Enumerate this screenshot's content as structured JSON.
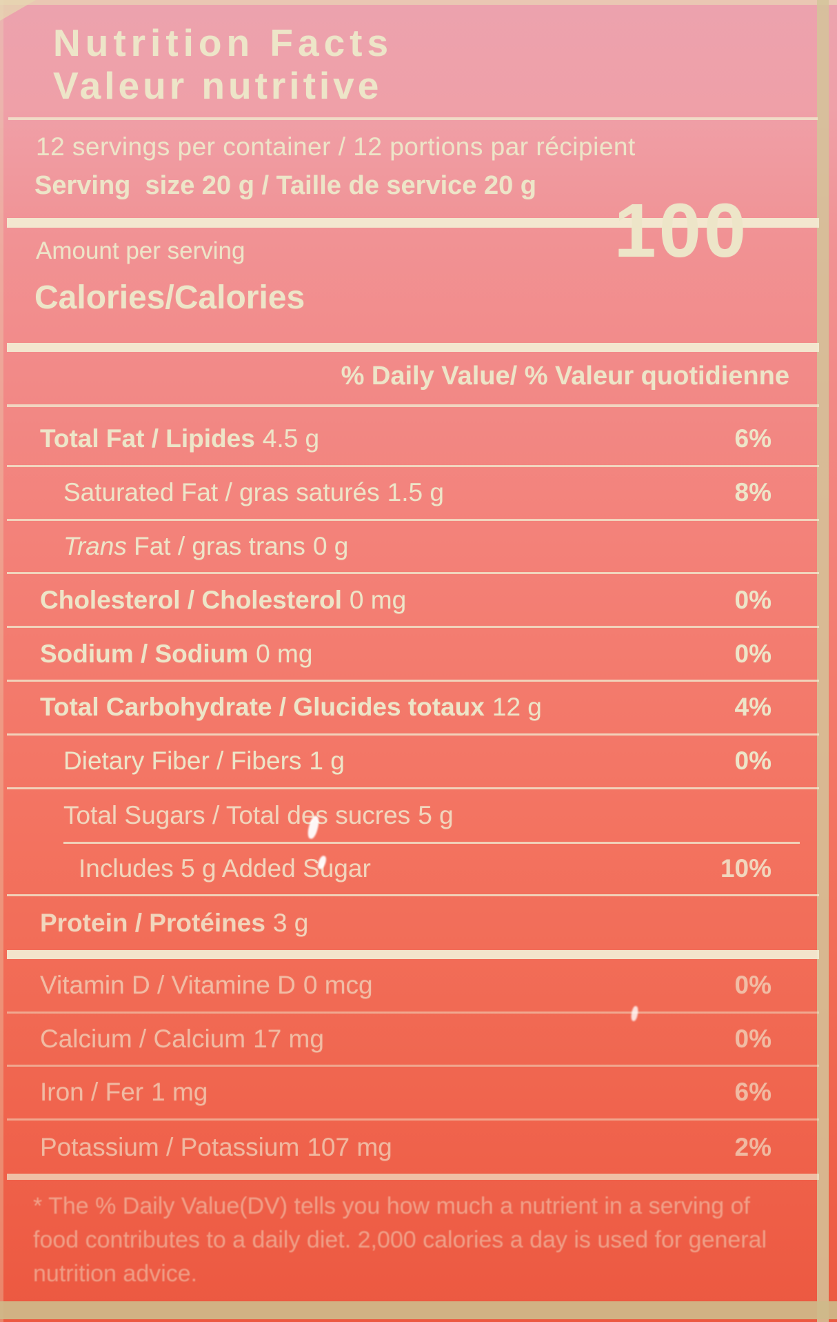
{
  "colors": {
    "label_background_top": "#eca2ae",
    "label_background_bottom": "#ec5840",
    "ink_cream": "#ede5c8",
    "border_cream": "#cdbb92"
  },
  "header": {
    "title_en": "Nutrition Facts",
    "title_fr": "Valeur nutritive"
  },
  "serving_info": {
    "servings_per_container": "12 servings per container / 12 portions par récipient",
    "serving_size": "Serving  size 20 g / Taille de service 20 g"
  },
  "calories": {
    "amount_per_serving_label": "Amount per serving",
    "label": "Calories/Calories",
    "value": "100"
  },
  "daily_value_header": "% Daily Value/ % Valeur quotidienne",
  "nutrients": [
    {
      "label": "Total Fat / Lipides",
      "amount": "4.5 g",
      "daily_value": "6%",
      "bold": true,
      "indent": 0
    },
    {
      "label": "Saturated Fat / gras saturés",
      "amount": "1.5 g",
      "daily_value": "8%",
      "bold": false,
      "indent": 1
    },
    {
      "label_italic_prefix": "Trans",
      "label": " Fat / gras trans",
      "amount": "0 g",
      "daily_value": "",
      "bold": false,
      "indent": 1
    },
    {
      "label": "Cholesterol / Cholesterol",
      "amount": "0 mg",
      "daily_value": "0%",
      "bold": true,
      "indent": 0
    },
    {
      "label": "Sodium / Sodium",
      "amount": "0 mg",
      "daily_value": "0%",
      "bold": true,
      "indent": 0
    },
    {
      "label": "Total Carbohydrate / Glucides totaux",
      "amount": "12 g",
      "daily_value": "4%",
      "bold": true,
      "indent": 0
    },
    {
      "label": "Dietary Fiber / Fibers",
      "amount": "1 g",
      "daily_value": "0%",
      "bold": false,
      "indent": 1
    },
    {
      "label": "Total Sugars / Total des sucres",
      "amount": "5 g",
      "daily_value": "",
      "bold": false,
      "indent": 1,
      "separator_after": "indented"
    },
    {
      "label": "Includes 5 g Added Sugar",
      "amount": "",
      "daily_value": "10%",
      "bold": false,
      "indent": 2
    },
    {
      "label": "Protein / Protéines",
      "amount": "3 g",
      "daily_value": "",
      "bold": true,
      "indent": 0
    }
  ],
  "micronutrients": [
    {
      "label": "Vitamin D / Vitamine D",
      "amount": "0 mcg",
      "daily_value": "0%"
    },
    {
      "label": "Calcium / Calcium",
      "amount": "17 mg",
      "daily_value": "0%"
    },
    {
      "label": "Iron / Fer",
      "amount": "1 mg",
      "daily_value": "6%"
    },
    {
      "label": "Potassium / Potassium",
      "amount": "107 mg",
      "daily_value": "2%"
    }
  ],
  "footnote": "* The % Daily Value(DV) tells you how much a nutrient in a serving of food  contributes to a daily diet. 2,000 calories a day is used for general nutrition advice."
}
